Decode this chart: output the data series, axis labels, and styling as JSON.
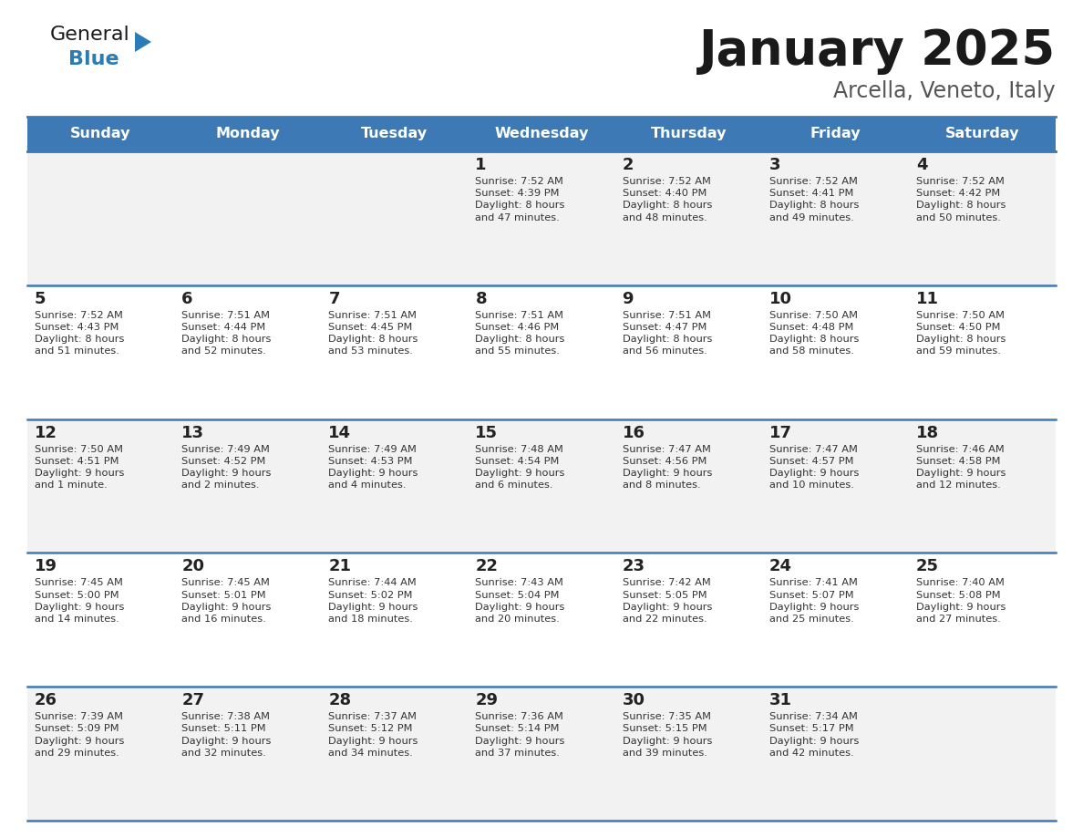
{
  "title": "January 2025",
  "subtitle": "Arcella, Veneto, Italy",
  "header_bg": "#3D7AB5",
  "header_text_color": "#FFFFFF",
  "days_of_week": [
    "Sunday",
    "Monday",
    "Tuesday",
    "Wednesday",
    "Thursday",
    "Friday",
    "Saturday"
  ],
  "cell_bg_light": "#F2F2F2",
  "cell_bg_white": "#FFFFFF",
  "row_line_color": "#3D7AB5",
  "text_color": "#333333",
  "day_num_color": "#222222",
  "logo_general_color": "#1a1a1a",
  "logo_blue_color": "#2B7BB5",
  "calendar": [
    [
      {
        "day": null,
        "info": null
      },
      {
        "day": null,
        "info": null
      },
      {
        "day": null,
        "info": null
      },
      {
        "day": 1,
        "info": "Sunrise: 7:52 AM\nSunset: 4:39 PM\nDaylight: 8 hours\nand 47 minutes."
      },
      {
        "day": 2,
        "info": "Sunrise: 7:52 AM\nSunset: 4:40 PM\nDaylight: 8 hours\nand 48 minutes."
      },
      {
        "day": 3,
        "info": "Sunrise: 7:52 AM\nSunset: 4:41 PM\nDaylight: 8 hours\nand 49 minutes."
      },
      {
        "day": 4,
        "info": "Sunrise: 7:52 AM\nSunset: 4:42 PM\nDaylight: 8 hours\nand 50 minutes."
      }
    ],
    [
      {
        "day": 5,
        "info": "Sunrise: 7:52 AM\nSunset: 4:43 PM\nDaylight: 8 hours\nand 51 minutes."
      },
      {
        "day": 6,
        "info": "Sunrise: 7:51 AM\nSunset: 4:44 PM\nDaylight: 8 hours\nand 52 minutes."
      },
      {
        "day": 7,
        "info": "Sunrise: 7:51 AM\nSunset: 4:45 PM\nDaylight: 8 hours\nand 53 minutes."
      },
      {
        "day": 8,
        "info": "Sunrise: 7:51 AM\nSunset: 4:46 PM\nDaylight: 8 hours\nand 55 minutes."
      },
      {
        "day": 9,
        "info": "Sunrise: 7:51 AM\nSunset: 4:47 PM\nDaylight: 8 hours\nand 56 minutes."
      },
      {
        "day": 10,
        "info": "Sunrise: 7:50 AM\nSunset: 4:48 PM\nDaylight: 8 hours\nand 58 minutes."
      },
      {
        "day": 11,
        "info": "Sunrise: 7:50 AM\nSunset: 4:50 PM\nDaylight: 8 hours\nand 59 minutes."
      }
    ],
    [
      {
        "day": 12,
        "info": "Sunrise: 7:50 AM\nSunset: 4:51 PM\nDaylight: 9 hours\nand 1 minute."
      },
      {
        "day": 13,
        "info": "Sunrise: 7:49 AM\nSunset: 4:52 PM\nDaylight: 9 hours\nand 2 minutes."
      },
      {
        "day": 14,
        "info": "Sunrise: 7:49 AM\nSunset: 4:53 PM\nDaylight: 9 hours\nand 4 minutes."
      },
      {
        "day": 15,
        "info": "Sunrise: 7:48 AM\nSunset: 4:54 PM\nDaylight: 9 hours\nand 6 minutes."
      },
      {
        "day": 16,
        "info": "Sunrise: 7:47 AM\nSunset: 4:56 PM\nDaylight: 9 hours\nand 8 minutes."
      },
      {
        "day": 17,
        "info": "Sunrise: 7:47 AM\nSunset: 4:57 PM\nDaylight: 9 hours\nand 10 minutes."
      },
      {
        "day": 18,
        "info": "Sunrise: 7:46 AM\nSunset: 4:58 PM\nDaylight: 9 hours\nand 12 minutes."
      }
    ],
    [
      {
        "day": 19,
        "info": "Sunrise: 7:45 AM\nSunset: 5:00 PM\nDaylight: 9 hours\nand 14 minutes."
      },
      {
        "day": 20,
        "info": "Sunrise: 7:45 AM\nSunset: 5:01 PM\nDaylight: 9 hours\nand 16 minutes."
      },
      {
        "day": 21,
        "info": "Sunrise: 7:44 AM\nSunset: 5:02 PM\nDaylight: 9 hours\nand 18 minutes."
      },
      {
        "day": 22,
        "info": "Sunrise: 7:43 AM\nSunset: 5:04 PM\nDaylight: 9 hours\nand 20 minutes."
      },
      {
        "day": 23,
        "info": "Sunrise: 7:42 AM\nSunset: 5:05 PM\nDaylight: 9 hours\nand 22 minutes."
      },
      {
        "day": 24,
        "info": "Sunrise: 7:41 AM\nSunset: 5:07 PM\nDaylight: 9 hours\nand 25 minutes."
      },
      {
        "day": 25,
        "info": "Sunrise: 7:40 AM\nSunset: 5:08 PM\nDaylight: 9 hours\nand 27 minutes."
      }
    ],
    [
      {
        "day": 26,
        "info": "Sunrise: 7:39 AM\nSunset: 5:09 PM\nDaylight: 9 hours\nand 29 minutes."
      },
      {
        "day": 27,
        "info": "Sunrise: 7:38 AM\nSunset: 5:11 PM\nDaylight: 9 hours\nand 32 minutes."
      },
      {
        "day": 28,
        "info": "Sunrise: 7:37 AM\nSunset: 5:12 PM\nDaylight: 9 hours\nand 34 minutes."
      },
      {
        "day": 29,
        "info": "Sunrise: 7:36 AM\nSunset: 5:14 PM\nDaylight: 9 hours\nand 37 minutes."
      },
      {
        "day": 30,
        "info": "Sunrise: 7:35 AM\nSunset: 5:15 PM\nDaylight: 9 hours\nand 39 minutes."
      },
      {
        "day": 31,
        "info": "Sunrise: 7:34 AM\nSunset: 5:17 PM\nDaylight: 9 hours\nand 42 minutes."
      },
      {
        "day": null,
        "info": null
      }
    ]
  ]
}
